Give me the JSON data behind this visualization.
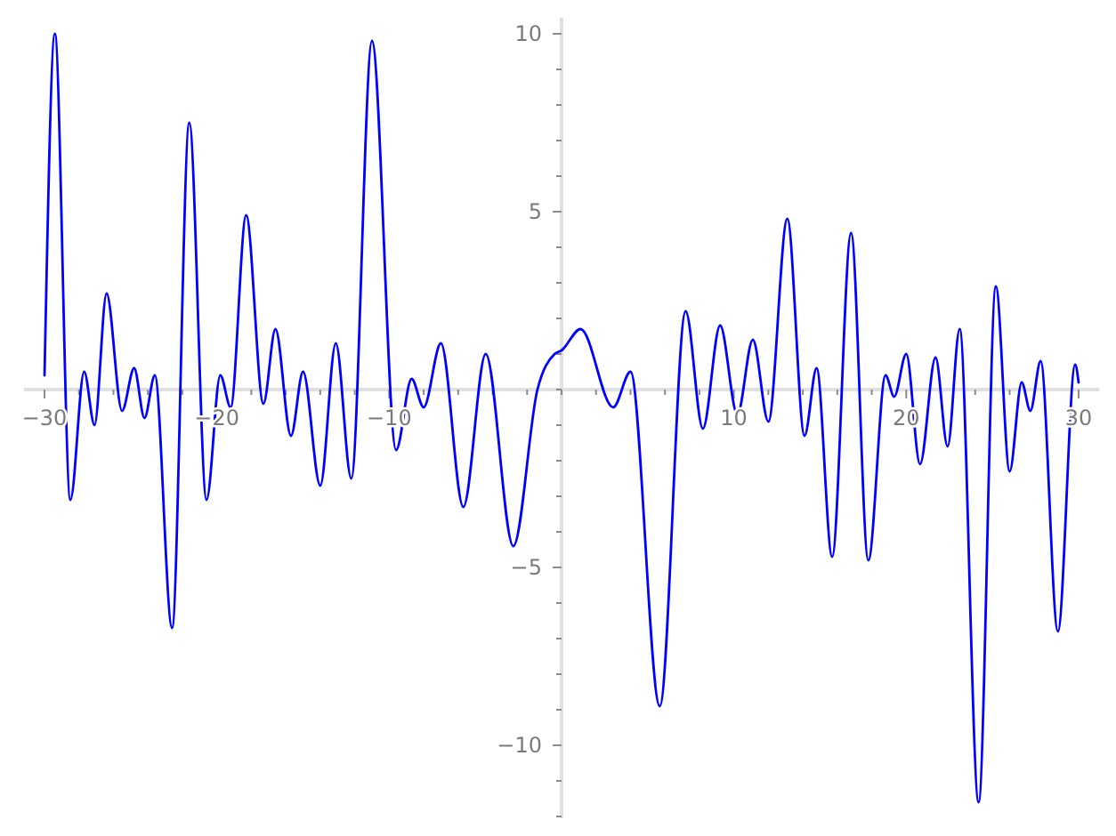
{
  "chart_data": {
    "type": "line",
    "x": [
      -30,
      -29.4,
      -28.5,
      -27.7,
      -27.1,
      -26.4,
      -25.5,
      -24.8,
      -24.2,
      -23.6,
      -22.6,
      -21.6,
      -20.6,
      -19.8,
      -19.2,
      -18.3,
      -17.3,
      -16.6,
      -15.7,
      -15.0,
      -14.0,
      -13.1,
      -12.2,
      -11.0,
      -9.6,
      -8.7,
      -8.0,
      -7.0,
      -5.7,
      -4.4,
      -2.8,
      -1.4,
      -0.4,
      0,
      1.1,
      3.0,
      4.0,
      5.7,
      7.2,
      8.2,
      9.2,
      10.2,
      11.1,
      12.0,
      13.1,
      14.1,
      14.8,
      15.7,
      16.8,
      17.8,
      18.8,
      19.3,
      20.0,
      20.8,
      21.7,
      22.4,
      23.1,
      24.2,
      25.2,
      26.0,
      26.7,
      27.2,
      27.8,
      28.8,
      29.8,
      30
    ],
    "series": [
      {
        "color": "#0000ff",
        "values": [
          0.4,
          10.0,
          -3.1,
          0.5,
          -1.0,
          2.7,
          -0.6,
          0.6,
          -0.8,
          0.4,
          -6.7,
          7.5,
          -3.1,
          0.4,
          -0.5,
          4.9,
          -0.4,
          1.7,
          -1.3,
          0.5,
          -2.7,
          1.3,
          -2.5,
          9.8,
          -1.7,
          0.3,
          -0.5,
          1.3,
          -3.3,
          1.0,
          -4.4,
          0,
          1.0,
          1.1,
          1.7,
          -0.5,
          0.5,
          -8.9,
          2.2,
          -1.1,
          1.8,
          -0.7,
          1.4,
          -0.9,
          4.8,
          -1.3,
          0.6,
          -4.7,
          4.4,
          -4.8,
          0.4,
          -0.2,
          1.0,
          -2.1,
          0.9,
          -1.6,
          1.7,
          -11.6,
          2.9,
          -2.3,
          0.2,
          -0.6,
          0.8,
          -6.8,
          0.7,
          0.2
        ]
      }
    ],
    "xlim": [
      -31.2,
      31.2
    ],
    "ylim": [
      -12.05,
      10.45
    ],
    "xticks": [
      {
        "value": -30,
        "label": "−30"
      },
      {
        "value": -28,
        "label": null
      },
      {
        "value": -26,
        "label": null
      },
      {
        "value": -24,
        "label": null
      },
      {
        "value": -22,
        "label": null
      },
      {
        "value": -20,
        "label": "−20"
      },
      {
        "value": -18,
        "label": null
      },
      {
        "value": -16,
        "label": null
      },
      {
        "value": -14,
        "label": null
      },
      {
        "value": -12,
        "label": null
      },
      {
        "value": -10,
        "label": "−10"
      },
      {
        "value": -8,
        "label": null
      },
      {
        "value": -6,
        "label": null
      },
      {
        "value": -4,
        "label": null
      },
      {
        "value": -2,
        "label": null
      },
      {
        "value": 0,
        "label": null
      },
      {
        "value": 2,
        "label": null
      },
      {
        "value": 4,
        "label": null
      },
      {
        "value": 6,
        "label": null
      },
      {
        "value": 8,
        "label": null
      },
      10,
      {
        "value": 12,
        "label": null
      },
      {
        "value": 14,
        "label": null
      },
      {
        "value": 16,
        "label": null
      },
      {
        "value": 18,
        "label": null
      },
      20,
      {
        "value": 22,
        "label": null
      },
      {
        "value": 24,
        "label": null
      },
      {
        "value": 26,
        "label": null
      },
      {
        "value": 28,
        "label": null
      },
      30
    ],
    "yticks": [
      {
        "value": -12,
        "label": null
      },
      {
        "value": -11,
        "label": null
      },
      {
        "value": -10,
        "label": "−10"
      },
      {
        "value": -9,
        "label": null
      },
      {
        "value": -8,
        "label": null
      },
      {
        "value": -7,
        "label": null
      },
      {
        "value": -6,
        "label": null
      },
      {
        "value": -5,
        "label": "−5"
      },
      {
        "value": -4,
        "label": null
      },
      {
        "value": -3,
        "label": null
      },
      {
        "value": -2,
        "label": null
      },
      {
        "value": -1,
        "label": null
      },
      {
        "value": 0,
        "label": null
      },
      {
        "value": 1,
        "label": null
      },
      {
        "value": 2,
        "label": null
      },
      {
        "value": 3,
        "label": null
      },
      {
        "value": 4,
        "label": null
      },
      5,
      {
        "value": 6,
        "label": null
      },
      {
        "value": 7,
        "label": null
      },
      {
        "value": 8,
        "label": null
      },
      {
        "value": 9,
        "label": null
      },
      10
    ]
  }
}
